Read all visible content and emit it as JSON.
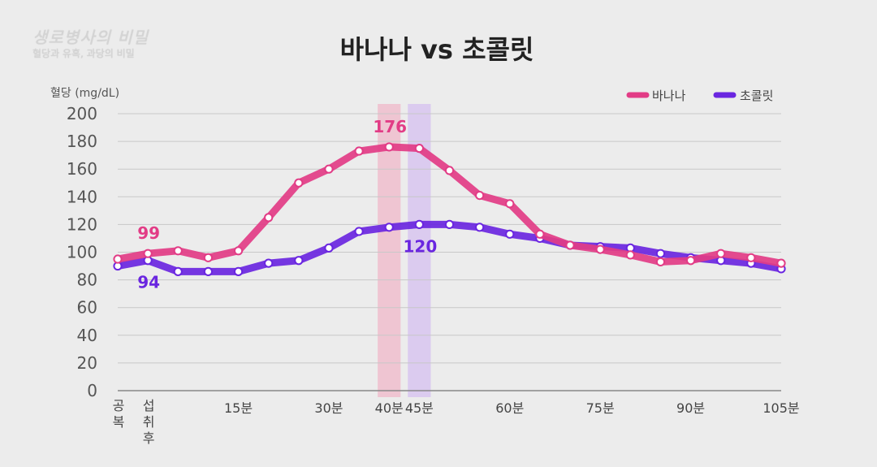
{
  "watermark": {
    "line1": "생로병사의 비밀",
    "line2": "혈당과 유혹, 과당의 비밀"
  },
  "chart_data": {
    "type": "line",
    "title": "바나나 vs 초콜릿",
    "ylabel": "혈당 (mg/dL)",
    "ylim": [
      0,
      200
    ],
    "yticks": [
      0,
      20,
      40,
      60,
      80,
      100,
      120,
      140,
      160,
      180,
      200
    ],
    "grid": true,
    "legend_position": "top-right",
    "x_tick_labels": [
      {
        "label": "공복",
        "at": -5,
        "vertical": true
      },
      {
        "label": "섭취후",
        "at": 0,
        "vertical": true
      },
      {
        "label": "15분",
        "at": 15
      },
      {
        "label": "30분",
        "at": 30
      },
      {
        "label": "40분",
        "at": 40
      },
      {
        "label": "45분",
        "at": 45
      },
      {
        "label": "60분",
        "at": 60
      },
      {
        "label": "75분",
        "at": 75
      },
      {
        "label": "90분",
        "at": 90
      },
      {
        "label": "105분",
        "at": 105
      }
    ],
    "highlight_bands": [
      {
        "at": 40,
        "color": "#f2a6bd"
      },
      {
        "at": 45,
        "color": "#cdb0f2"
      }
    ],
    "series": [
      {
        "name": "바나나",
        "color": "#e23c86",
        "x": [
          -5,
          0,
          5,
          10,
          15,
          20,
          25,
          30,
          35,
          40,
          45,
          50,
          55,
          60,
          65,
          70,
          75,
          80,
          85,
          90,
          95,
          100,
          105
        ],
        "values": [
          95,
          99,
          101,
          96,
          101,
          125,
          150,
          160,
          173,
          176,
          175,
          159,
          141,
          135,
          113,
          105,
          102,
          98,
          93,
          94,
          99,
          96,
          92
        ]
      },
      {
        "name": "초콜릿",
        "color": "#6a26e0",
        "x": [
          -5,
          0,
          5,
          10,
          15,
          20,
          25,
          30,
          35,
          40,
          45,
          50,
          55,
          60,
          65,
          70,
          75,
          80,
          85,
          90,
          95,
          100,
          105
        ],
        "values": [
          90,
          94,
          86,
          86,
          86,
          92,
          94,
          103,
          115,
          118,
          120,
          120,
          118,
          113,
          110,
          105,
          104,
          103,
          99,
          96,
          94,
          92,
          88
        ]
      }
    ],
    "annotations": [
      {
        "text": "99",
        "series": "바나나",
        "x": 0,
        "value": 99,
        "position": "above"
      },
      {
        "text": "94",
        "series": "초콜릿",
        "x": 0,
        "value": 94,
        "position": "below"
      },
      {
        "text": "176",
        "series": "바나나",
        "x": 40,
        "value": 176,
        "position": "above"
      },
      {
        "text": "120",
        "series": "초콜릿",
        "x": 45,
        "value": 120,
        "position": "below"
      }
    ]
  }
}
